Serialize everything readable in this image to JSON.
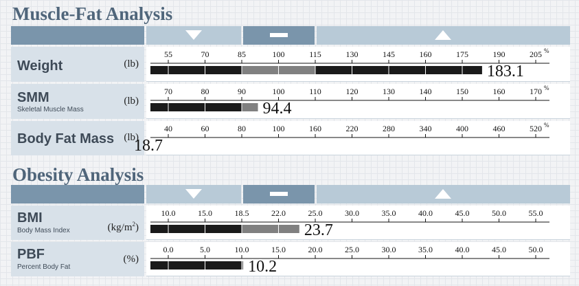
{
  "sections": [
    {
      "title": "Muscle-Fat Analysis",
      "header": {
        "under_icon": "triangle-down-icon",
        "normal_icon": "dash-icon",
        "over_icon": "triangle-up-icon"
      }
    },
    {
      "title": "Obesity Analysis",
      "header": {
        "under_icon": "triangle-down-icon",
        "normal_icon": "dash-icon",
        "over_icon": "triangle-up-icon"
      }
    }
  ],
  "colors": {
    "header_dark": "#7a95ab",
    "header_light": "#b8cad7",
    "label_bg": "#d8e1e9",
    "bar_dark": "#1a1a1a",
    "bar_gray": "#808080",
    "title": "#4f657a"
  },
  "chart_data": [
    {
      "type": "bar",
      "name": "Weight",
      "subtitle": "",
      "unit": "(lb)",
      "unit_sup": "",
      "pct_mark": "%",
      "ticks": [
        "55",
        "70",
        "85",
        "100",
        "115",
        "130",
        "145",
        "160",
        "175",
        "190",
        "205"
      ],
      "value": 183.1,
      "value_label": "183.1",
      "normal_range": [
        85,
        115
      ],
      "scale": "piecewise"
    },
    {
      "type": "bar",
      "name": "SMM",
      "subtitle": "Skeletal Muscle Mass",
      "unit": "(lb)",
      "unit_sup": "",
      "pct_mark": "%",
      "ticks": [
        "70",
        "80",
        "90",
        "100",
        "110",
        "120",
        "130",
        "140",
        "150",
        "160",
        "170"
      ],
      "value": 94.4,
      "value_label": "94.4",
      "normal_range": [
        90,
        110
      ],
      "scale": "piecewise"
    },
    {
      "type": "bar",
      "name": "Body Fat Mass",
      "subtitle": "",
      "unit": "(lb)",
      "unit_sup": "",
      "pct_mark": "%",
      "ticks": [
        "40",
        "60",
        "80",
        "100",
        "160",
        "220",
        "280",
        "340",
        "400",
        "460",
        "520"
      ],
      "value": 18.7,
      "value_label": "18.7",
      "normal_range": [
        80,
        160
      ],
      "scale": "piecewise"
    },
    {
      "type": "bar",
      "name": "BMI",
      "subtitle": "Body Mass Index",
      "unit": "(kg/m",
      "unit_sup": "2",
      "pct_mark": "",
      "ticks": [
        "10.0",
        "15.0",
        "18.5",
        "22.0",
        "25.0",
        "30.0",
        "35.0",
        "40.0",
        "45.0",
        "50.0",
        "55.0"
      ],
      "value": 23.7,
      "value_label": "23.7",
      "normal_range": [
        18.5,
        25.0
      ],
      "scale": "piecewise"
    },
    {
      "type": "bar",
      "name": "PBF",
      "subtitle": "Percent Body Fat",
      "unit": "(%)",
      "unit_sup": "",
      "pct_mark": "",
      "ticks": [
        "0.0",
        "5.0",
        "10.0",
        "15.0",
        "20.0",
        "25.0",
        "30.0",
        "35.0",
        "40.0",
        "45.0",
        "50.0"
      ],
      "value": 10.2,
      "value_label": "10.2",
      "normal_range": [
        10.0,
        20.0
      ],
      "scale": "piecewise"
    }
  ]
}
